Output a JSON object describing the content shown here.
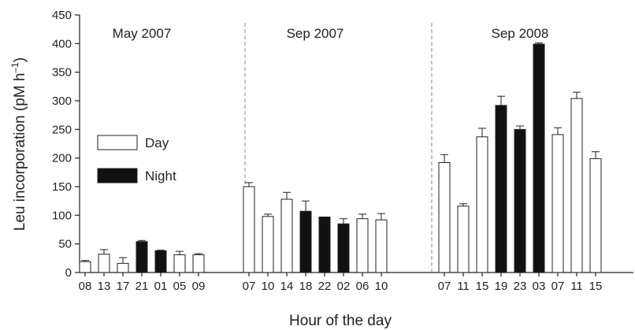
{
  "chart_data": {
    "type": "bar",
    "xlabel": "Hour of the day",
    "ylabel": "Leu incorporation  (pM h",
    "ylabel_sup": "–1",
    "ylabel_close": ")",
    "ylim": [
      0,
      450
    ],
    "yticks": [
      0,
      50,
      100,
      150,
      200,
      250,
      300,
      350,
      400,
      450
    ],
    "legend": {
      "placement": "left",
      "items": [
        {
          "label": "Day",
          "fill": "#ffffff"
        },
        {
          "label": "Night",
          "fill": "#111111"
        }
      ]
    },
    "groups": [
      {
        "label": "May 2007",
        "bars": [
          {
            "hour": "08",
            "value": 19,
            "error": 2,
            "period": "day"
          },
          {
            "hour": "13",
            "value": 32,
            "error": 8,
            "period": "day"
          },
          {
            "hour": "17",
            "value": 16,
            "error": 10,
            "period": "day"
          },
          {
            "hour": "21",
            "value": 54,
            "error": 2,
            "period": "night"
          },
          {
            "hour": "01",
            "value": 38,
            "error": 1,
            "period": "night"
          },
          {
            "hour": "05",
            "value": 31,
            "error": 6,
            "period": "day"
          },
          {
            "hour": "09",
            "value": 31,
            "error": 2,
            "period": "day"
          }
        ]
      },
      {
        "label": "Sep 2007",
        "bars": [
          {
            "hour": "07",
            "value": 150,
            "error": 7,
            "period": "day"
          },
          {
            "hour": "10",
            "value": 98,
            "error": 4,
            "period": "day"
          },
          {
            "hour": "14",
            "value": 128,
            "error": 12,
            "period": "day"
          },
          {
            "hour": "18",
            "value": 107,
            "error": 18,
            "period": "night"
          },
          {
            "hour": "22",
            "value": 97,
            "error": 0,
            "period": "night"
          },
          {
            "hour": "02",
            "value": 85,
            "error": 9,
            "period": "night"
          },
          {
            "hour": "06",
            "value": 94,
            "error": 8,
            "period": "day"
          },
          {
            "hour": "10",
            "value": 92,
            "error": 11,
            "period": "day"
          }
        ]
      },
      {
        "label": "Sep 2008",
        "bars": [
          {
            "hour": "07",
            "value": 192,
            "error": 14,
            "period": "day"
          },
          {
            "hour": "11",
            "value": 116,
            "error": 4,
            "period": "day"
          },
          {
            "hour": "15",
            "value": 237,
            "error": 15,
            "period": "day"
          },
          {
            "hour": "19",
            "value": 292,
            "error": 16,
            "period": "night"
          },
          {
            "hour": "23",
            "value": 250,
            "error": 6,
            "period": "night"
          },
          {
            "hour": "03",
            "value": 399,
            "error": 2,
            "period": "night"
          },
          {
            "hour": "07",
            "value": 241,
            "error": 12,
            "period": "day"
          },
          {
            "hour": "11",
            "value": 304,
            "error": 11,
            "period": "day"
          },
          {
            "hour": "15",
            "value": 199,
            "error": 12,
            "period": "day"
          }
        ]
      }
    ]
  }
}
